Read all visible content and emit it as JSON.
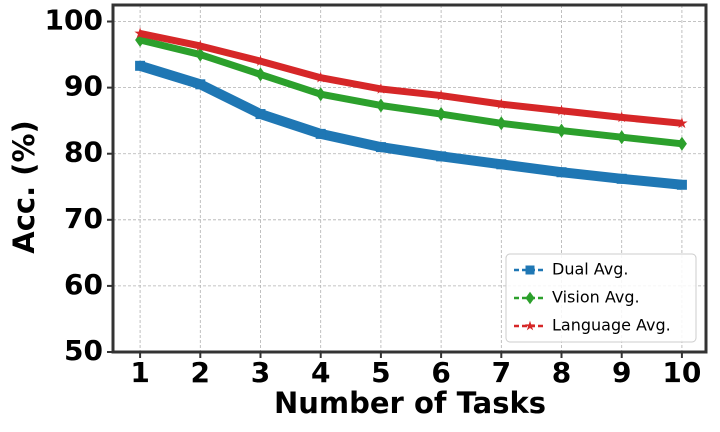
{
  "chart_data": {
    "type": "line",
    "x_label": "Number of Tasks",
    "y_label": "Acc. (%)",
    "x": [
      1,
      2,
      3,
      4,
      5,
      6,
      7,
      8,
      9,
      10
    ],
    "series": [
      {
        "name": "Dual Avg.",
        "color": "#1f77b4",
        "marker": "square",
        "values": [
          93.3,
          90.5,
          86.0,
          83.0,
          81.0,
          79.6,
          78.4,
          77.2,
          76.2,
          75.3
        ]
      },
      {
        "name": "Vision Avg.",
        "color": "#2ca02c",
        "marker": "diamond",
        "values": [
          97.2,
          95.0,
          92.0,
          89.0,
          87.3,
          86.0,
          84.6,
          83.5,
          82.5,
          81.5
        ]
      },
      {
        "name": "Language Avg.",
        "color": "#d62728",
        "marker": "star",
        "values": [
          98.2,
          96.3,
          94.0,
          91.5,
          89.8,
          88.8,
          87.5,
          86.5,
          85.5,
          84.6
        ]
      }
    ],
    "xlim": [
      0.55,
      10.4
    ],
    "xticks": [
      1,
      2,
      3,
      4,
      5,
      6,
      7,
      8,
      9,
      10
    ],
    "ylim": [
      50,
      102.5
    ],
    "yticks": [
      50,
      60,
      70,
      80,
      90,
      100
    ],
    "grid": true,
    "legend": "lower right"
  }
}
